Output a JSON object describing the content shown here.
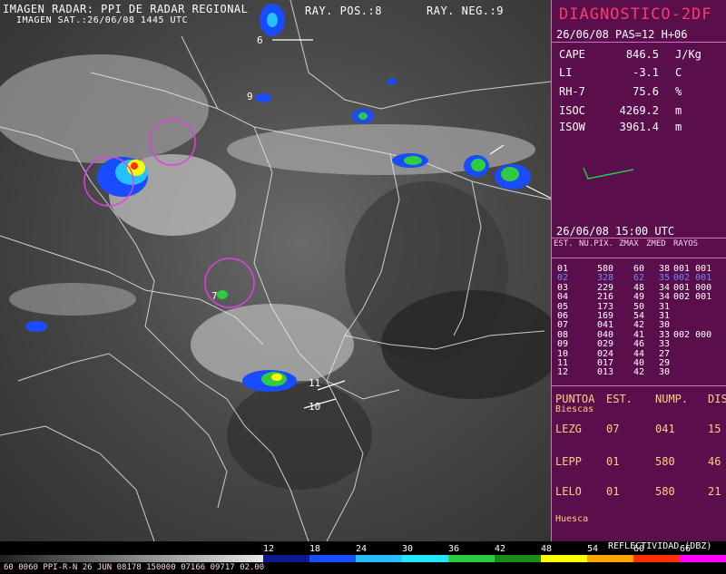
{
  "header": {
    "line1_left": "IMAGEN RADAR: PPI DE RADAR REGIONAL",
    "line1_pos": "RAY. POS.:8",
    "line1_neg": "RAY. NEG.:9",
    "line2": "IMAGEN SAT.:26/06/08   1445 UTC"
  },
  "map_labels": {
    "l9": "9",
    "l7": "7",
    "l11": "11",
    "l10": "10",
    "l6": "6"
  },
  "panel": {
    "title": "DIAGNOSTICO-2DF",
    "subtitle": "26/06/08 PAS=12 H+06",
    "rows": [
      {
        "k": "CAPE",
        "v": "846.5",
        "u": "J/Kg"
      },
      {
        "k": "LI",
        "v": "-3.1",
        "u": "C"
      },
      {
        "k": "RH-7",
        "v": "75.6",
        "u": "%"
      },
      {
        "k": "ISOC",
        "v": "4269.2",
        "u": "m"
      },
      {
        "k": "ISOW",
        "v": "3961.4",
        "u": "m"
      }
    ],
    "time": "26/06/08      15:00 UTC",
    "table_headers": [
      "EST.",
      "NU.PIX.",
      "ZMAX",
      "ZMED",
      "RAYOS"
    ],
    "table": [
      [
        "01",
        "580",
        "60",
        "38",
        "001 001"
      ],
      [
        "02",
        "328",
        "62",
        "35",
        "002 001"
      ],
      [
        "03",
        "229",
        "48",
        "34",
        "001 000"
      ],
      [
        "04",
        "216",
        "49",
        "34",
        "002 001"
      ],
      [
        "05",
        "173",
        "50",
        "31",
        ""
      ],
      [
        "06",
        "169",
        "54",
        "31",
        ""
      ],
      [
        "07",
        "041",
        "42",
        "30",
        ""
      ],
      [
        "08",
        "040",
        "41",
        "33",
        "002 000"
      ],
      [
        "09",
        "029",
        "46",
        "33",
        ""
      ],
      [
        "10",
        "024",
        "44",
        "27",
        ""
      ],
      [
        "11",
        "017",
        "40",
        "29",
        ""
      ],
      [
        "12",
        "013",
        "42",
        "30",
        ""
      ]
    ],
    "points_headers": [
      "PUNTOA",
      "EST.",
      "NUMP.",
      "DIS."
    ],
    "points_sub": "Biescas",
    "points": [
      [
        "LEZG",
        "07",
        "041",
        "15"
      ],
      [
        "LEPP",
        "01",
        "580",
        "46"
      ],
      [
        "LELO",
        "01",
        "580",
        "21"
      ]
    ],
    "points_foot": "Huesca"
  },
  "colorbar": {
    "title": "REFLECTIVIDAD (DBZ)",
    "ticks": [
      "12",
      "18",
      "24",
      "30",
      "36",
      "42",
      "48",
      "54",
      "60",
      "66"
    ],
    "colors": [
      "#0a1a8c",
      "#1a4cff",
      "#26c0ff",
      "#22e8ff",
      "#2ecc40",
      "#1a8c1a",
      "#ffff00",
      "#ffa500",
      "#ff3000",
      "#ff00ff"
    ],
    "footer": "60 0060 PPI-R-N  26 JUN 08178 150000 07166 09717 02.00"
  }
}
